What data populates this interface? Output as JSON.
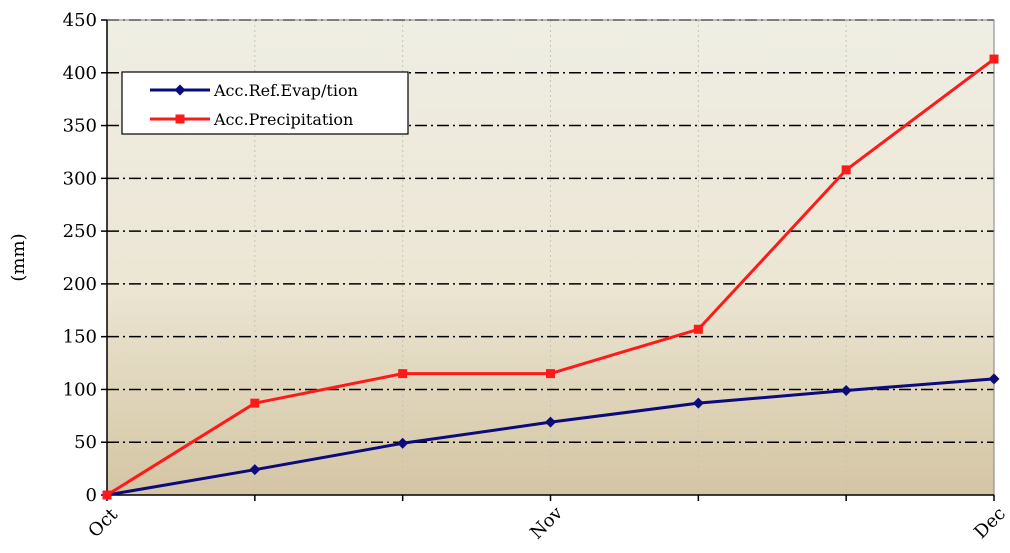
{
  "chart_data": {
    "type": "line",
    "x": [
      0,
      1,
      2,
      3,
      4,
      5,
      6
    ],
    "x_tick_labels": [
      "Oct",
      "",
      "",
      "Nov",
      "",
      "",
      "Dec"
    ],
    "xlim": [
      0,
      6
    ],
    "ylim": [
      0,
      450
    ],
    "yticks": [
      0,
      50,
      100,
      150,
      200,
      250,
      300,
      350,
      400,
      450
    ],
    "ylabel": "(mm)",
    "xlabel": "",
    "title": "",
    "grid": true,
    "legend_position": "top-left",
    "background_colors": [
      "#efeee4",
      "#ece6d4",
      "#d4c5a3"
    ],
    "series": [
      {
        "name": "Acc.Ref.Evap/tion",
        "color": "#0b0b7c",
        "marker": "diamond",
        "values": [
          0,
          24,
          49,
          69,
          87,
          99,
          110
        ]
      },
      {
        "name": "Acc.Precipitation",
        "color": "#ff1a1a",
        "marker": "square",
        "values": [
          0,
          87,
          115,
          115,
          157,
          308,
          413
        ]
      }
    ]
  }
}
